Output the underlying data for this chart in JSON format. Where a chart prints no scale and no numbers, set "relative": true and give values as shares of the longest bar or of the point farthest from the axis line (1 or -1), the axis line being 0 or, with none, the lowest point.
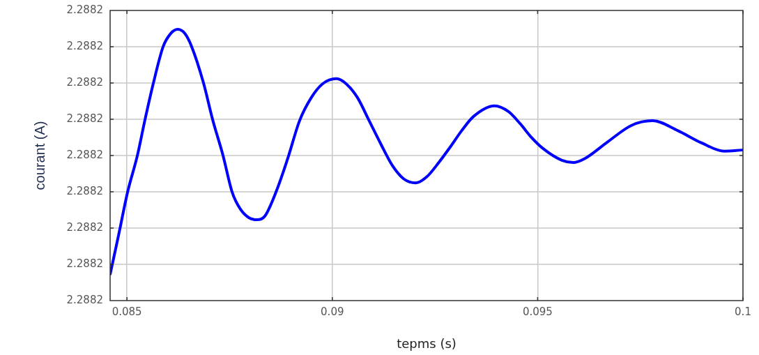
{
  "chart_data": {
    "type": "line",
    "xlabel": "tepms (s)",
    "ylabel": "courant (A)",
    "relative": true,
    "annotations": [
      "2.2882",
      "2.2882",
      "2.2882",
      "2.2882",
      "2.2882",
      "2.2882",
      "2.2882",
      "2.2882",
      "2.2882"
    ],
    "x": [
      0.084593,
      0.084797,
      0.085017,
      0.085254,
      0.085441,
      0.085644,
      0.085881,
      0.086068,
      0.086237,
      0.086407,
      0.086576,
      0.086864,
      0.087085,
      0.087339,
      0.087559,
      0.087763,
      0.087966,
      0.088169,
      0.088356,
      0.088644,
      0.088915,
      0.089203,
      0.089492,
      0.089763,
      0.090102,
      0.090339,
      0.09061,
      0.090898,
      0.091186,
      0.091458,
      0.091746,
      0.092034,
      0.092305,
      0.092593,
      0.092881,
      0.093153,
      0.093441,
      0.093949,
      0.094288,
      0.094576,
      0.094847,
      0.095136,
      0.095593,
      0.095864,
      0.096153,
      0.096712,
      0.097288,
      0.097797,
      0.098407,
      0.098983,
      0.099542,
      0.099983
    ],
    "series": [
      {
        "color": "#0000ff",
        "values": [
          0.098,
          0.242,
          0.401,
          0.535,
          0.668,
          0.802,
          0.936,
          0.985,
          1,
          0.985,
          0.936,
          0.802,
          0.668,
          0.535,
          0.401,
          0.337,
          0.306,
          0.298,
          0.311,
          0.406,
          0.524,
          0.663,
          0.749,
          0.799,
          0.818,
          0.799,
          0.749,
          0.663,
          0.576,
          0.499,
          0.448,
          0.434,
          0.457,
          0.509,
          0.568,
          0.627,
          0.679,
          0.718,
          0.697,
          0.652,
          0.602,
          0.56,
          0.517,
          0.509,
          0.524,
          0.586,
          0.646,
          0.663,
          0.627,
          0.582,
          0.551,
          0.555
        ]
      }
    ],
    "xlim": [
      0.08459,
      0.1
    ],
    "xticks": [
      0.085,
      0.09,
      0.095,
      0.1
    ],
    "grid": true,
    "legend": false,
    "marker": "none",
    "line_style": "solid"
  }
}
